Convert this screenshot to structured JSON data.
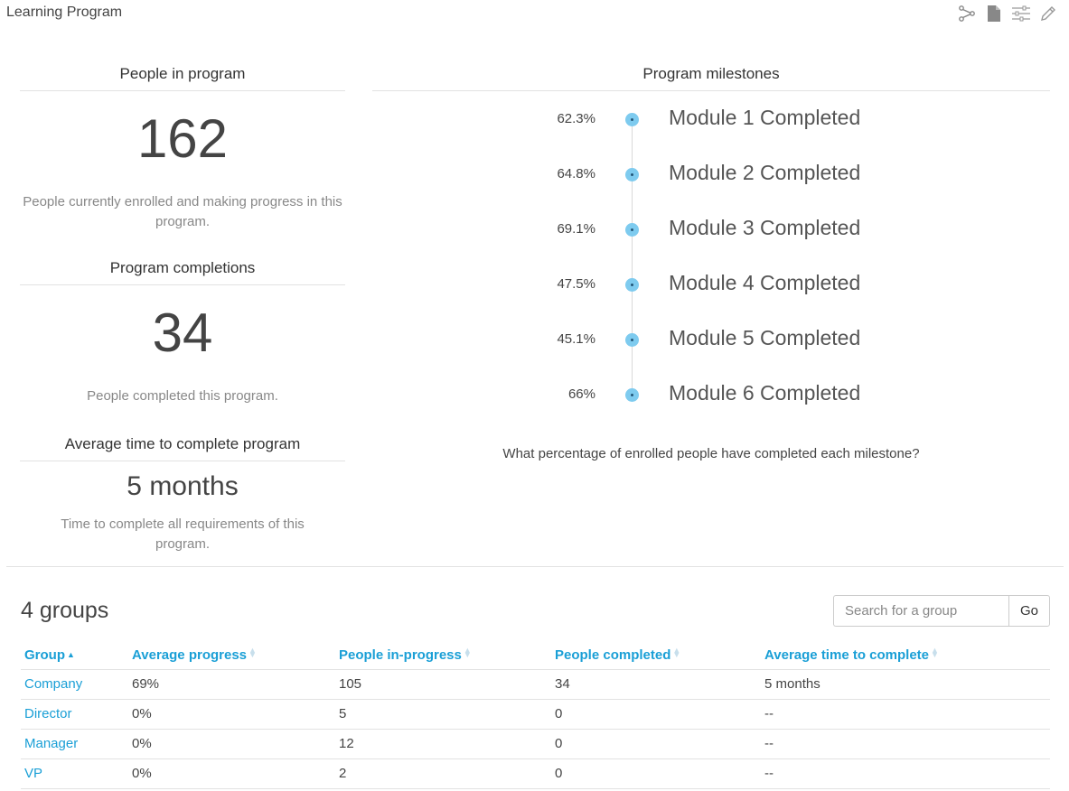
{
  "header": {
    "title": "Learning Program"
  },
  "toolbar": {
    "icons": [
      "hierarchy-icon",
      "document-icon",
      "filter-icon",
      "pencil-icon"
    ]
  },
  "stats": {
    "enrolled": {
      "heading": "People in program",
      "value": "162",
      "description": "People currently enrolled and making progress in this program."
    },
    "completions": {
      "heading": "Program completions",
      "value": "34",
      "description": "People completed this program."
    },
    "avg_time": {
      "heading": "Average time to complete program",
      "value": "5 months",
      "description": "Time to complete all requirements of this program."
    }
  },
  "milestones": {
    "heading": "Program milestones",
    "items": [
      {
        "pct": "62.3%",
        "label": "Module 1 Completed"
      },
      {
        "pct": "64.8%",
        "label": "Module 2 Completed"
      },
      {
        "pct": "69.1%",
        "label": "Module 3 Completed"
      },
      {
        "pct": "47.5%",
        "label": "Module 4 Completed"
      },
      {
        "pct": "45.1%",
        "label": "Module 5 Completed"
      },
      {
        "pct": "66%",
        "label": "Module 6 Completed"
      }
    ],
    "question": "What percentage of enrolled people have completed each milestone?"
  },
  "groups": {
    "count_label": "4 groups",
    "search": {
      "placeholder": "Search for a group",
      "button": "Go"
    },
    "columns": [
      "Group",
      "Average progress",
      "People in-progress",
      "People completed",
      "Average time to complete"
    ],
    "rows": [
      {
        "group": "Company",
        "progress": "69%",
        "in_progress": "105",
        "completed": "34",
        "avg_time": "5 months"
      },
      {
        "group": "Director",
        "progress": "0%",
        "in_progress": "5",
        "completed": "0",
        "avg_time": "--"
      },
      {
        "group": "Manager",
        "progress": "0%",
        "in_progress": "12",
        "completed": "0",
        "avg_time": "--"
      },
      {
        "group": "VP",
        "progress": "0%",
        "in_progress": "2",
        "completed": "0",
        "avg_time": "--"
      }
    ]
  },
  "colors": {
    "accent": "#1a9fd6",
    "milestone_dot": "#7ecbef"
  }
}
